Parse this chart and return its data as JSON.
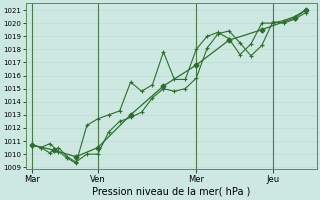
{
  "xlabel": "Pression niveau de la mer( hPa )",
  "bg_color": "#cce8e0",
  "grid_color": "#b8ddd6",
  "line_color": "#2d6e2d",
  "vline_color": "#4a7a4a",
  "ylim": [
    1009,
    1021.5
  ],
  "yticks": [
    1009,
    1010,
    1011,
    1012,
    1013,
    1014,
    1015,
    1016,
    1017,
    1018,
    1019,
    1020,
    1021
  ],
  "day_labels": [
    "Mar",
    "Ven",
    "Mer",
    "Jeu"
  ],
  "day_positions": [
    0.0,
    3.0,
    7.5,
    11.0
  ],
  "vline_positions": [
    0.0,
    3.0,
    7.5,
    11.0
  ],
  "xlim": [
    -0.3,
    13.0
  ],
  "series1_x": [
    0.0,
    0.4,
    0.8,
    1.2,
    1.6,
    2.0,
    2.5,
    3.0,
    3.5,
    4.0,
    4.5,
    5.0,
    5.5,
    6.0,
    6.5,
    7.0,
    7.5,
    8.0,
    8.5,
    9.0,
    9.5,
    10.0,
    10.5,
    11.0,
    11.5,
    12.0,
    12.5
  ],
  "series1_y": [
    1010.7,
    1010.5,
    1010.1,
    1010.5,
    1009.8,
    1009.4,
    1010.0,
    1010.0,
    1011.7,
    1012.5,
    1012.8,
    1013.2,
    1014.3,
    1015.0,
    1014.8,
    1015.0,
    1015.8,
    1018.1,
    1019.2,
    1019.4,
    1018.5,
    1017.5,
    1018.3,
    1020.1,
    1020.0,
    1020.3,
    1020.8
  ],
  "series2_x": [
    0.0,
    0.4,
    0.8,
    1.2,
    1.6,
    2.0,
    2.5,
    3.0,
    3.5,
    4.0,
    4.5,
    5.0,
    5.5,
    6.0,
    6.5,
    7.0,
    7.5,
    8.0,
    8.5,
    9.0,
    9.5,
    10.0,
    10.5,
    11.0,
    11.5,
    12.0,
    12.5
  ],
  "series2_y": [
    1010.7,
    1010.5,
    1010.8,
    1010.2,
    1009.7,
    1009.3,
    1012.2,
    1012.7,
    1013.0,
    1013.3,
    1015.5,
    1014.8,
    1015.3,
    1017.8,
    1015.7,
    1015.7,
    1018.0,
    1019.0,
    1019.3,
    1018.8,
    1017.6,
    1018.4,
    1020.0,
    1020.0,
    1020.2,
    1020.5,
    1021.0
  ],
  "series3_x": [
    0.0,
    1.0,
    2.0,
    3.0,
    4.5,
    6.0,
    7.5,
    9.0,
    10.5,
    12.0,
    12.5
  ],
  "series3_y": [
    1010.7,
    1010.3,
    1009.8,
    1010.5,
    1013.0,
    1015.2,
    1016.8,
    1018.7,
    1019.5,
    1020.4,
    1021.0
  ]
}
